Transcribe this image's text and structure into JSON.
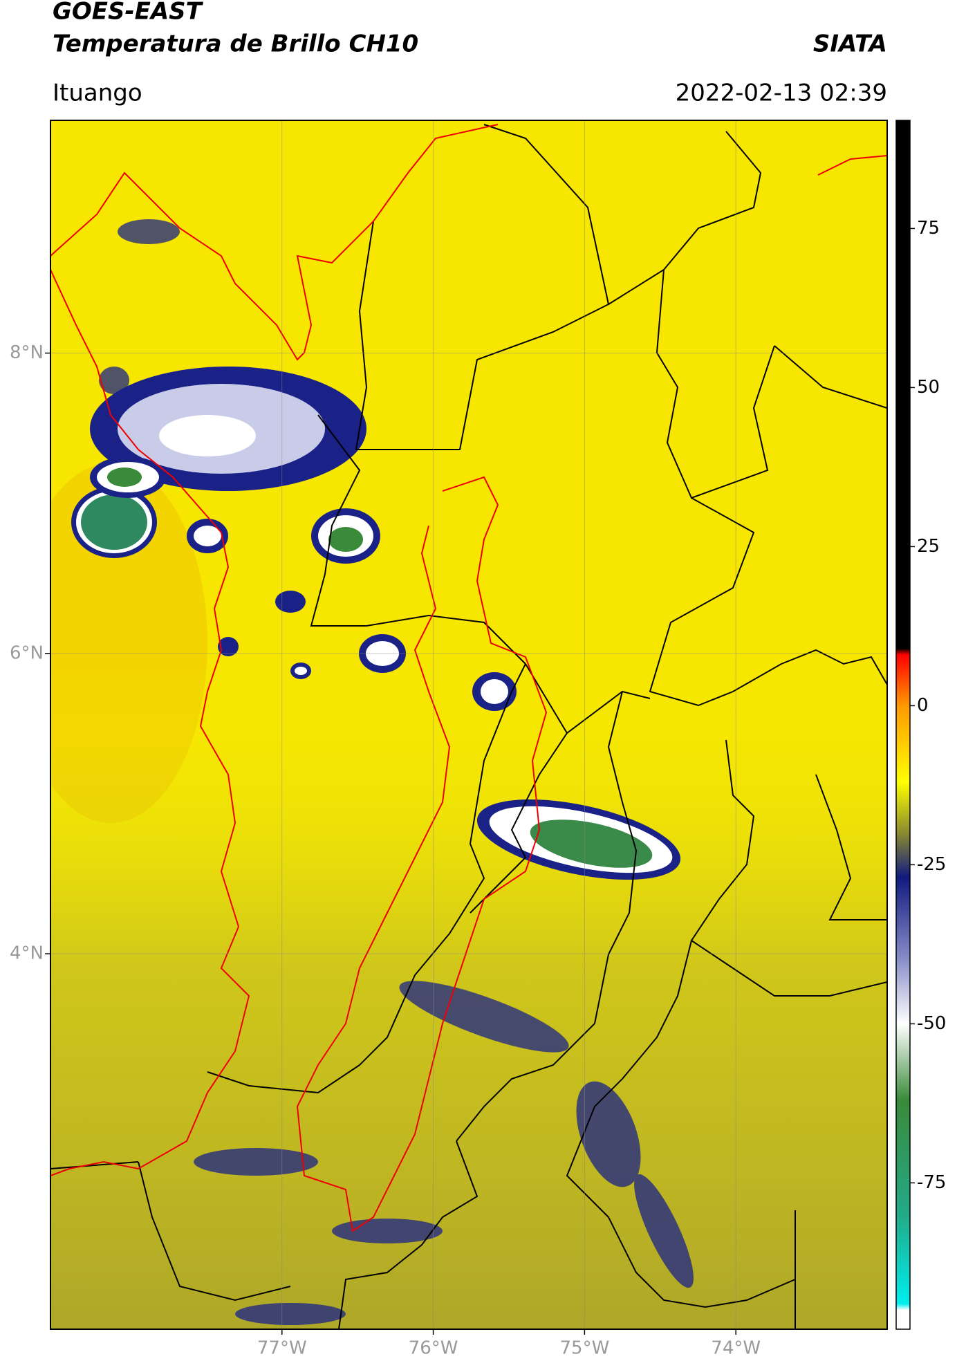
{
  "chart_data": {
    "type": "map",
    "title": "GOES-EAST",
    "subtitle": "Temperatura de Brillo CH10",
    "region": "Ituango",
    "date": "2022-02-13 02:39",
    "source": "SIATA",
    "xlim": [
      -78.53,
      -73.0
    ],
    "ylim": [
      1.5,
      9.55
    ],
    "xticks": [
      {
        "value": -77,
        "label": "77°W"
      },
      {
        "value": -76,
        "label": "76°W"
      },
      {
        "value": -75,
        "label": "75°W"
      },
      {
        "value": -74,
        "label": "74°W"
      }
    ],
    "yticks": [
      {
        "value": 8,
        "label": "8°N"
      },
      {
        "value": 6,
        "label": "6°N"
      },
      {
        "value": 4,
        "label": "4°N"
      }
    ],
    "grid": true,
    "colorbar": {
      "lim": [
        -98,
        92
      ],
      "ticks": [
        75,
        50,
        25,
        0,
        -25,
        -50,
        -75
      ],
      "stops": [
        {
          "value": 92,
          "color": "#000000"
        },
        {
          "value": 9,
          "color": "#000000"
        },
        {
          "value": 8,
          "color": "#ff0000"
        },
        {
          "value": 0,
          "color": "#ff9900"
        },
        {
          "value": -12,
          "color": "#ffff00"
        },
        {
          "value": -20,
          "color": "#8a8a30"
        },
        {
          "value": -27,
          "color": "#111a80"
        },
        {
          "value": -40,
          "color": "#8a8fc8"
        },
        {
          "value": -50,
          "color": "#ffffff"
        },
        {
          "value": -62,
          "color": "#3a8a3a"
        },
        {
          "value": -80,
          "color": "#22aa88"
        },
        {
          "value": -94,
          "color": "#00eeee"
        },
        {
          "value": -95,
          "color": "#ffffff"
        },
        {
          "value": -98,
          "color": "#ffffff"
        }
      ]
    }
  }
}
